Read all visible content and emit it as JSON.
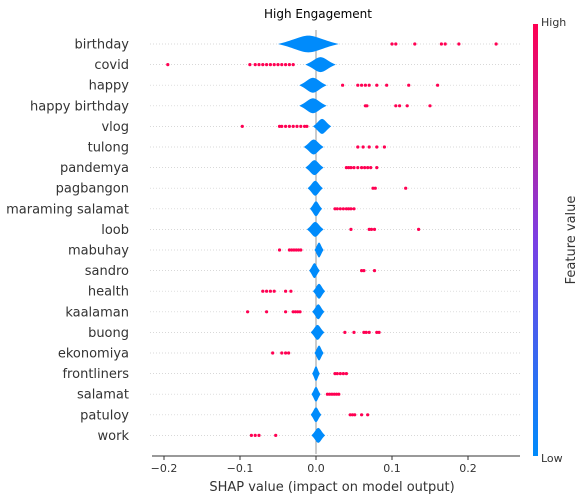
{
  "chart_data": {
    "type": "scatter",
    "subtype": "shap-beeswarm-violin",
    "title": "High Engagement",
    "xlabel": "SHAP value (impact on model output)",
    "xlim": [
      -0.22,
      0.27
    ],
    "x_ticks": [
      -0.2,
      -0.1,
      0.0,
      0.1,
      0.2
    ],
    "x_tick_labels": [
      "−0.2",
      "−0.1",
      "0.0",
      "0.1",
      "0.2"
    ],
    "colorbar": {
      "title": "Feature value",
      "high_label": "High",
      "low_label": "Low",
      "high_color": "#ff0052",
      "low_color": "#008bfb"
    },
    "grid": false,
    "features": [
      {
        "name": "birthday",
        "violin": {
          "center": -0.01,
          "halfwidth": 0.04,
          "thickness": 0.5
        },
        "high_points": [
          0.1,
          0.105,
          0.13,
          0.165,
          0.17,
          0.188,
          0.237
        ]
      },
      {
        "name": "covid",
        "violin": {
          "center": 0.006,
          "halfwidth": 0.02,
          "thickness": 0.45
        },
        "high_points": [
          -0.195,
          -0.087,
          -0.08,
          -0.075,
          -0.07,
          -0.065,
          -0.06,
          -0.055,
          -0.05,
          -0.045,
          -0.04,
          -0.035,
          -0.03
        ]
      },
      {
        "name": "happy",
        "violin": {
          "center": -0.004,
          "halfwidth": 0.018,
          "thickness": 0.45
        },
        "high_points": [
          0.035,
          0.055,
          0.06,
          0.065,
          0.07,
          0.08,
          0.093,
          0.122,
          0.16
        ]
      },
      {
        "name": "happy birthday",
        "violin": {
          "center": -0.004,
          "halfwidth": 0.018,
          "thickness": 0.45
        },
        "high_points": [
          0.065,
          0.067,
          0.105,
          0.11,
          0.12,
          0.15
        ]
      },
      {
        "name": "vlog",
        "violin": {
          "center": 0.008,
          "halfwidth": 0.012,
          "thickness": 0.45
        },
        "high_points": [
          -0.097,
          -0.048,
          -0.045,
          -0.04,
          -0.035,
          -0.03,
          -0.025,
          -0.02,
          -0.015,
          -0.012
        ]
      },
      {
        "name": "tulong",
        "violin": {
          "center": -0.003,
          "halfwidth": 0.013,
          "thickness": 0.45
        },
        "high_points": [
          0.055,
          0.062,
          0.07,
          0.08,
          0.09
        ]
      },
      {
        "name": "pandemya",
        "violin": {
          "center": -0.002,
          "halfwidth": 0.012,
          "thickness": 0.45
        },
        "high_points": [
          0.04,
          0.043,
          0.046,
          0.05,
          0.055,
          0.06,
          0.064,
          0.068,
          0.072,
          0.08
        ]
      },
      {
        "name": "pagbangon",
        "violin": {
          "center": -0.001,
          "halfwidth": 0.01,
          "thickness": 0.45
        },
        "high_points": [
          0.075,
          0.078,
          0.118
        ]
      },
      {
        "name": "maraming salamat",
        "violin": {
          "center": 0.0,
          "halfwidth": 0.008,
          "thickness": 0.45
        },
        "high_points": [
          0.025,
          0.028,
          0.032,
          0.036,
          0.04,
          0.043,
          0.046,
          0.05
        ]
      },
      {
        "name": "loob",
        "violin": {
          "center": -0.001,
          "halfwidth": 0.011,
          "thickness": 0.45
        },
        "high_points": [
          0.046,
          0.07,
          0.073,
          0.077,
          0.135
        ]
      },
      {
        "name": "mabuhay",
        "violin": {
          "center": 0.004,
          "halfwidth": 0.006,
          "thickness": 0.45
        },
        "high_points": [
          -0.048,
          -0.035,
          -0.032,
          -0.029,
          -0.026,
          -0.023,
          -0.02
        ]
      },
      {
        "name": "sandro",
        "violin": {
          "center": -0.002,
          "halfwidth": 0.007,
          "thickness": 0.45
        },
        "high_points": [
          0.06,
          0.063,
          0.077
        ]
      },
      {
        "name": "health",
        "violin": {
          "center": 0.004,
          "halfwidth": 0.008,
          "thickness": 0.45
        },
        "high_points": [
          -0.07,
          -0.065,
          -0.06,
          -0.055,
          -0.04,
          -0.033
        ]
      },
      {
        "name": "kaalaman",
        "violin": {
          "center": 0.003,
          "halfwidth": 0.008,
          "thickness": 0.45
        },
        "high_points": [
          -0.09,
          -0.065,
          -0.04,
          -0.03,
          -0.027,
          -0.024,
          -0.021
        ]
      },
      {
        "name": "buong",
        "violin": {
          "center": 0.002,
          "halfwidth": 0.009,
          "thickness": 0.45
        },
        "high_points": [
          0.038,
          0.05,
          0.063,
          0.066,
          0.07,
          0.08,
          0.083
        ]
      },
      {
        "name": "ekonomiya",
        "violin": {
          "center": 0.004,
          "halfwidth": 0.006,
          "thickness": 0.45
        },
        "high_points": [
          -0.057,
          -0.045,
          -0.04,
          -0.036
        ]
      },
      {
        "name": "frontliners",
        "violin": {
          "center": 0.0,
          "halfwidth": 0.005,
          "thickness": 0.45
        },
        "high_points": [
          0.025,
          0.028,
          0.032,
          0.036,
          0.04
        ]
      },
      {
        "name": "salamat",
        "violin": {
          "center": 0.0,
          "halfwidth": 0.006,
          "thickness": 0.45
        },
        "high_points": [
          0.015,
          0.018,
          0.021,
          0.024,
          0.027,
          0.03
        ]
      },
      {
        "name": "patuloy",
        "violin": {
          "center": 0.0,
          "halfwidth": 0.007,
          "thickness": 0.45
        },
        "high_points": [
          0.045,
          0.048,
          0.051,
          0.06,
          0.068
        ]
      },
      {
        "name": "work",
        "violin": {
          "center": 0.003,
          "halfwidth": 0.009,
          "thickness": 0.45
        },
        "high_points": [
          -0.085,
          -0.08,
          -0.075,
          -0.053
        ]
      }
    ]
  }
}
